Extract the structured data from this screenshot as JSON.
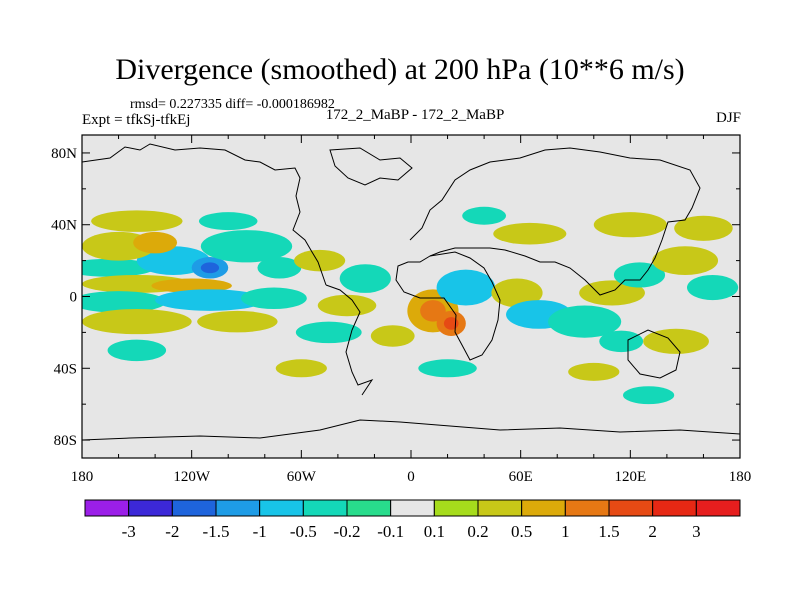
{
  "header": {
    "title": "Divergence (smoothed) at 200 hPa (10**6 m/s)",
    "stats": "rmsd= 0.227335 diff= -0.000186982",
    "experiments": "172_2_MaBP - 172_2_MaBP",
    "expt_label": "Expt = tfkSj-tfkEj",
    "season": "DJF"
  },
  "chart_data": {
    "type": "contour-map",
    "title": "Divergence (smoothed) at 200 hPa (10**6 m/s)",
    "variable": "Divergence (smoothed)",
    "level": "200 hPa",
    "units": "10**6 m/s",
    "season": "DJF",
    "rmsd": 0.227335,
    "diff": -0.000186982,
    "x_range": [
      -180,
      180
    ],
    "y_range": [
      -90,
      90
    ],
    "x_ticks": [
      {
        "value": -180,
        "label": "180"
      },
      {
        "value": -120,
        "label": "120W"
      },
      {
        "value": -60,
        "label": "60W"
      },
      {
        "value": 0,
        "label": "0"
      },
      {
        "value": 60,
        "label": "60E"
      },
      {
        "value": 120,
        "label": "120E"
      },
      {
        "value": 180,
        "label": "180"
      }
    ],
    "y_ticks": [
      {
        "value": 80,
        "label": "80N"
      },
      {
        "value": 40,
        "label": "40N"
      },
      {
        "value": 0,
        "label": "0"
      },
      {
        "value": -40,
        "label": "40S"
      },
      {
        "value": -80,
        "label": "80S"
      }
    ],
    "colorbar": {
      "levels": [
        "-3",
        "-2",
        "-1.5",
        "-1",
        "-0.5",
        "-0.2",
        "-0.1",
        "0.1",
        "0.2",
        "0.5",
        "1",
        "1.5",
        "2",
        "3"
      ],
      "colors": [
        "#9b1fe8",
        "#3c28d8",
        "#1e64dc",
        "#1e9ce6",
        "#18c4e8",
        "#14d8b8",
        "#28dc8c",
        "#e6e6e6",
        "#a6dc1c",
        "#c8c818",
        "#dcaa0a",
        "#e67814",
        "#e64a14",
        "#e62814",
        "#e61e1e"
      ]
    },
    "anomalies": [
      {
        "lon": -165,
        "lat": 16,
        "rlon": 25,
        "rlat": 5,
        "v": -0.3
      },
      {
        "lon": -130,
        "lat": 20,
        "rlon": 20,
        "rlat": 8,
        "v": -0.6
      },
      {
        "lon": -110,
        "lat": 16,
        "rlon": 10,
        "rlat": 6,
        "v": -1.1
      },
      {
        "lon": -150,
        "lat": 7,
        "rlon": 30,
        "rlat": 5,
        "v": 0.3
      },
      {
        "lon": -120,
        "lat": 6,
        "rlon": 22,
        "rlat": 4,
        "v": 0.6
      },
      {
        "lon": -160,
        "lat": -3,
        "rlon": 26,
        "rlat": 6,
        "v": -0.3
      },
      {
        "lon": -110,
        "lat": -2,
        "rlon": 30,
        "rlat": 6,
        "v": -0.6
      },
      {
        "lon": -75,
        "lat": -1,
        "rlon": 18,
        "rlat": 6,
        "v": -0.3
      },
      {
        "lon": -150,
        "lat": -14,
        "rlon": 30,
        "rlat": 7,
        "v": 0.3
      },
      {
        "lon": -95,
        "lat": -14,
        "rlon": 22,
        "rlat": 6,
        "v": 0.3
      },
      {
        "lon": -160,
        "lat": 28,
        "rlon": 20,
        "rlat": 8,
        "v": 0.25
      },
      {
        "lon": -140,
        "lat": 30,
        "rlon": 12,
        "rlat": 6,
        "v": 0.6
      },
      {
        "lon": -90,
        "lat": 28,
        "rlon": 25,
        "rlat": 9,
        "v": -0.4
      },
      {
        "lon": -72,
        "lat": 16,
        "rlon": 12,
        "rlat": 6,
        "v": -0.3
      },
      {
        "lon": -50,
        "lat": 20,
        "rlon": 14,
        "rlat": 6,
        "v": 0.3
      },
      {
        "lon": -25,
        "lat": 10,
        "rlon": 14,
        "rlat": 8,
        "v": -0.4
      },
      {
        "lon": -35,
        "lat": -5,
        "rlon": 16,
        "rlat": 6,
        "v": 0.3
      },
      {
        "lon": -45,
        "lat": -20,
        "rlon": 18,
        "rlat": 6,
        "v": -0.3
      },
      {
        "lon": -10,
        "lat": -22,
        "rlon": 12,
        "rlat": 6,
        "v": 0.3
      },
      {
        "lon": 12,
        "lat": -8,
        "rlon": 14,
        "rlat": 12,
        "v": 0.8
      },
      {
        "lon": 22,
        "lat": -15,
        "rlon": 8,
        "rlat": 7,
        "v": 1.2
      },
      {
        "lon": 30,
        "lat": 5,
        "rlon": 16,
        "rlat": 10,
        "v": -0.6
      },
      {
        "lon": 58,
        "lat": 2,
        "rlon": 14,
        "rlat": 8,
        "v": 0.4
      },
      {
        "lon": 70,
        "lat": -10,
        "rlon": 18,
        "rlat": 8,
        "v": -0.6
      },
      {
        "lon": 95,
        "lat": -14,
        "rlon": 20,
        "rlat": 9,
        "v": -0.4
      },
      {
        "lon": 110,
        "lat": 2,
        "rlon": 18,
        "rlat": 7,
        "v": 0.3
      },
      {
        "lon": 125,
        "lat": 12,
        "rlon": 14,
        "rlat": 7,
        "v": -0.3
      },
      {
        "lon": 150,
        "lat": 20,
        "rlon": 18,
        "rlat": 8,
        "v": 0.5
      },
      {
        "lon": 165,
        "lat": 5,
        "rlon": 14,
        "rlat": 7,
        "v": -0.3
      },
      {
        "lon": 145,
        "lat": -25,
        "rlon": 18,
        "rlat": 7,
        "v": 0.4
      },
      {
        "lon": 115,
        "lat": -25,
        "rlon": 12,
        "rlat": 6,
        "v": -0.3
      },
      {
        "lon": 40,
        "lat": 45,
        "rlon": 12,
        "rlat": 5,
        "v": -0.3
      },
      {
        "lon": 65,
        "lat": 35,
        "rlon": 20,
        "rlat": 6,
        "v": 0.3
      },
      {
        "lon": 120,
        "lat": 40,
        "rlon": 20,
        "rlat": 7,
        "v": 0.3
      },
      {
        "lon": 160,
        "lat": 38,
        "rlon": 16,
        "rlat": 7,
        "v": 0.4
      },
      {
        "lon": -150,
        "lat": 42,
        "rlon": 25,
        "rlat": 6,
        "v": 0.3
      },
      {
        "lon": -100,
        "lat": 42,
        "rlon": 16,
        "rlat": 5,
        "v": -0.3
      },
      {
        "lon": -60,
        "lat": -40,
        "rlon": 14,
        "rlat": 5,
        "v": 0.3
      },
      {
        "lon": 20,
        "lat": -40,
        "rlon": 16,
        "rlat": 5,
        "v": -0.3
      },
      {
        "lon": 100,
        "lat": -42,
        "rlon": 14,
        "rlat": 5,
        "v": 0.3
      },
      {
        "lon": 130,
        "lat": -55,
        "rlon": 14,
        "rlat": 5,
        "v": -0.3
      },
      {
        "lon": -150,
        "lat": -30,
        "rlon": 16,
        "rlat": 6,
        "v": -0.3
      }
    ]
  }
}
